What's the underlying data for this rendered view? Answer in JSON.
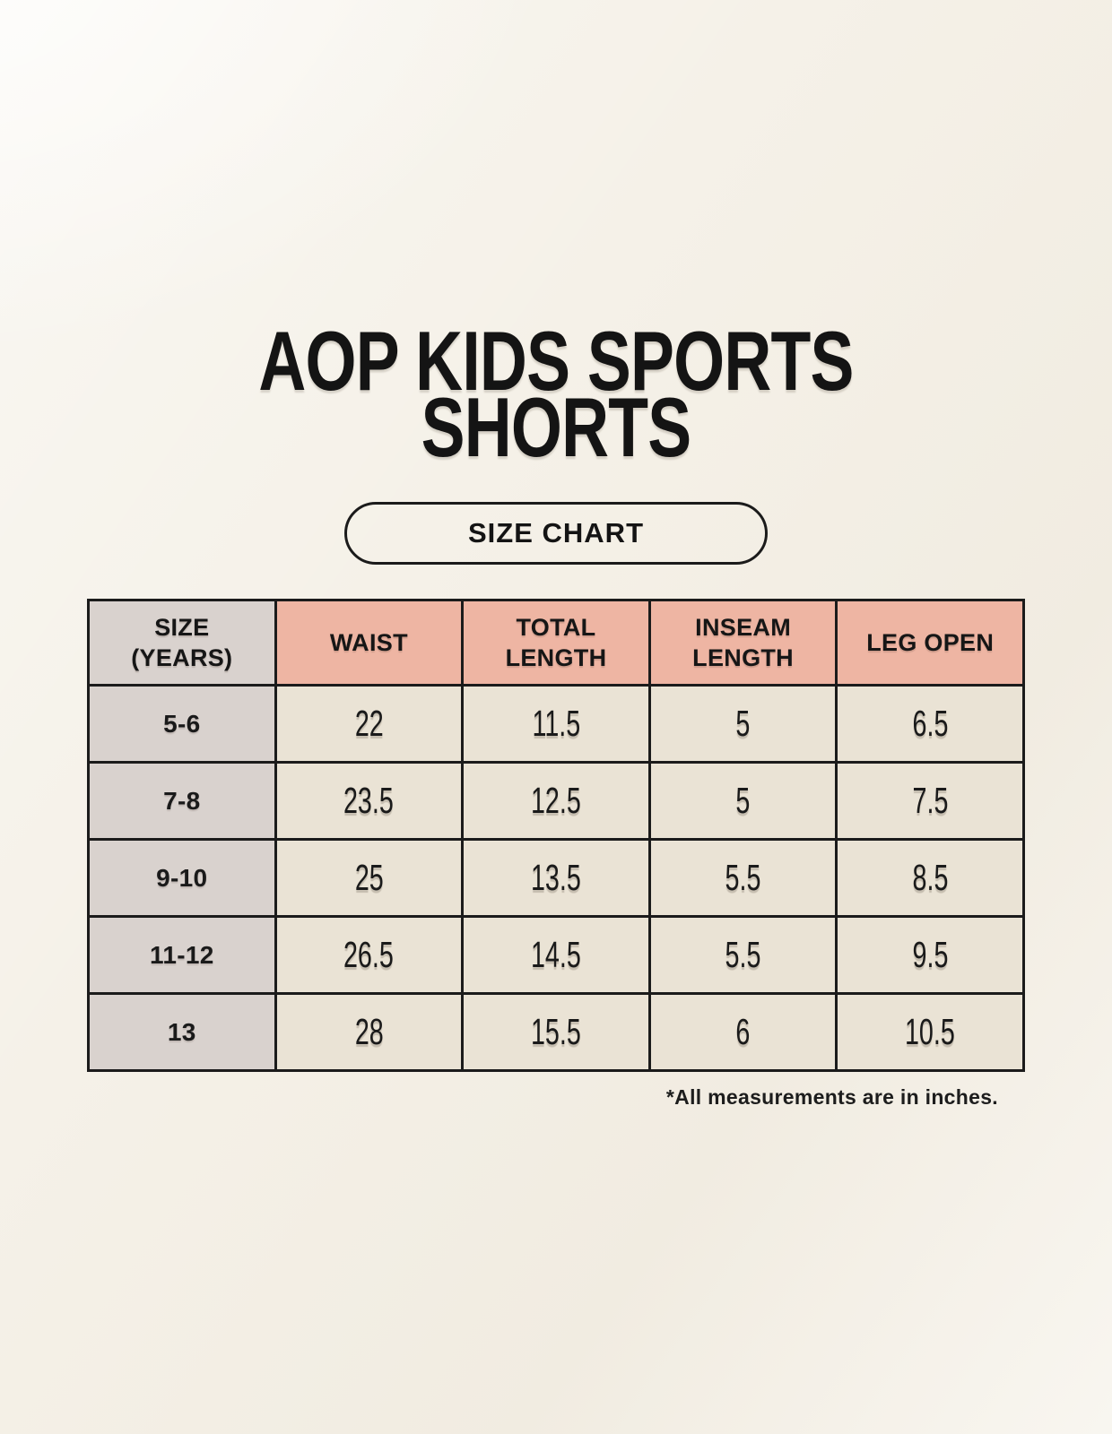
{
  "page": {
    "title_line1": "AOP KIDS SPORTS",
    "title_line2": "SHORTS",
    "badge_label": "SIZE CHART",
    "footnote": "*All measurements are in inches."
  },
  "colors": {
    "background": "#f5f1e8",
    "header_accent": "#eeb5a3",
    "label_column": "#d9d2ce",
    "cell_background": "#eae3d5",
    "border": "#1b1b1b",
    "text": "#1a1a1a"
  },
  "table": {
    "headers": [
      {
        "line1": "SIZE",
        "line2": "(YEARS)"
      },
      {
        "line1": "WAIST",
        "line2": ""
      },
      {
        "line1": "TOTAL",
        "line2": "LENGTH"
      },
      {
        "line1": "INSEAM",
        "line2": "LENGTH"
      },
      {
        "line1": "LEG OPEN",
        "line2": ""
      }
    ],
    "rows": [
      {
        "size": "5-6",
        "waist": "22",
        "total_length": "11.5",
        "inseam_length": "5",
        "leg_open": "6.5"
      },
      {
        "size": "7-8",
        "waist": "23.5",
        "total_length": "12.5",
        "inseam_length": "5",
        "leg_open": "7.5"
      },
      {
        "size": "9-10",
        "waist": "25",
        "total_length": "13.5",
        "inseam_length": "5.5",
        "leg_open": "8.5"
      },
      {
        "size": "11-12",
        "waist": "26.5",
        "total_length": "14.5",
        "inseam_length": "5.5",
        "leg_open": "9.5"
      },
      {
        "size": "13",
        "waist": "28",
        "total_length": "15.5",
        "inseam_length": "6",
        "leg_open": "10.5"
      }
    ]
  },
  "chart_data": {
    "type": "table",
    "title": "AOP KIDS SPORTS SHORTS",
    "subtitle": "SIZE CHART",
    "columns": [
      "SIZE (YEARS)",
      "WAIST",
      "TOTAL LENGTH",
      "INSEAM LENGTH",
      "LEG OPEN"
    ],
    "rows": [
      [
        "5-6",
        22,
        11.5,
        5,
        6.5
      ],
      [
        "7-8",
        23.5,
        12.5,
        5,
        7.5
      ],
      [
        "9-10",
        25,
        13.5,
        5.5,
        8.5
      ],
      [
        "11-12",
        26.5,
        14.5,
        5.5,
        9.5
      ],
      [
        "13",
        28,
        15.5,
        6,
        10.5
      ]
    ],
    "note": "*All measurements are in inches.",
    "units": "inches"
  }
}
